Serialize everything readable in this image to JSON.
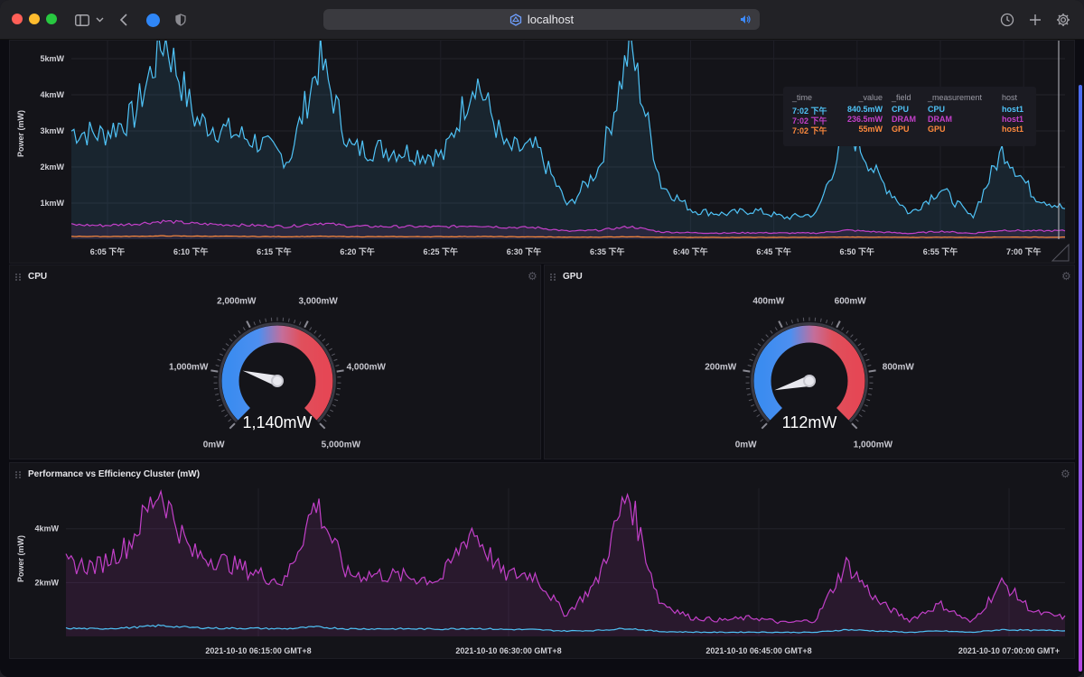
{
  "browser": {
    "url": "localhost",
    "traffic_colors": [
      "#ff5f57",
      "#febc2e",
      "#28c840"
    ]
  },
  "top_chart": {
    "ylabel": "Power (mW)",
    "y_ticks": [
      "5kmW",
      "4kmW",
      "3kmW",
      "2kmW",
      "1kmW"
    ],
    "y_tick_values": [
      5000,
      4000,
      3000,
      2000,
      1000
    ],
    "x_ticks": [
      "6:05 下午",
      "6:10 下午",
      "6:15 下午",
      "6:20 下午",
      "6:25 下午",
      "6:30 下午",
      "6:35 下午",
      "6:40 下午",
      "6:45 下午",
      "6:50 下午",
      "6:55 下午",
      "7:00 下午"
    ],
    "legend": {
      "headers": [
        "_time",
        "_value",
        "_field",
        "_measurement",
        "host"
      ],
      "rows": [
        {
          "time": "7:02 下午",
          "value": "840.5mW",
          "field": "CPU",
          "measurement": "CPU",
          "host": "host1",
          "color": "#4fc3f7"
        },
        {
          "time": "7:02 下午",
          "value": "236.5mW",
          "field": "DRAM",
          "measurement": "DRAM",
          "host": "host1",
          "color": "#c340c9"
        },
        {
          "time": "7:02 下午",
          "value": "55mW",
          "field": "GPU",
          "measurement": "GPU",
          "host": "host1",
          "color": "#ff8a3d"
        }
      ]
    }
  },
  "cpu_gauge": {
    "title": "CPU",
    "value": 1140,
    "max": 5000,
    "value_label": "1,140mW",
    "tick_labels": [
      "0mW",
      "1,000mW",
      "2,000mW",
      "3,000mW",
      "4,000mW",
      "5,000mW"
    ]
  },
  "gpu_gauge": {
    "title": "GPU",
    "value": 112,
    "max": 1000,
    "value_label": "112mW",
    "tick_labels": [
      "0mW",
      "200mW",
      "400mW",
      "600mW",
      "800mW",
      "1,000mW"
    ]
  },
  "bottom_chart": {
    "title": "Performance vs Efficiency Cluster (mW)",
    "ylabel": "Power (mW)",
    "y_ticks": [
      "4kmW",
      "2kmW"
    ],
    "y_tick_values": [
      4000,
      2000
    ],
    "x_ticks": [
      "2021-10-10 06:15:00 GMT+8",
      "2021-10-10 06:30:00 GMT+8",
      "2021-10-10 06:45:00 GMT+8",
      "2021-10-10 07:00:00 GMT+"
    ]
  },
  "chart_data": [
    {
      "type": "area",
      "xlabel": "",
      "ylabel": "Power (mW)",
      "ylim": [
        0,
        5500
      ],
      "x": [
        "18:02",
        "18:05",
        "18:08",
        "18:09",
        "18:10",
        "18:12",
        "18:14",
        "18:16",
        "18:17",
        "18:18",
        "18:20",
        "18:22",
        "18:25",
        "18:27",
        "18:29",
        "18:30",
        "18:32",
        "18:33",
        "18:34",
        "18:35",
        "18:37",
        "18:40",
        "18:43",
        "18:46",
        "18:49",
        "18:50",
        "18:52",
        "18:54",
        "18:55",
        "18:57",
        "18:59",
        "19:00",
        "19:02"
      ],
      "series": [
        {
          "name": "CPU",
          "values": [
            3000,
            2900,
            3400,
            5600,
            3300,
            3000,
            2700,
            2200,
            5000,
            2500,
            2500,
            2400,
            2300,
            4500,
            2500,
            2500,
            900,
            2000,
            5400,
            1500,
            800,
            700,
            800,
            600,
            700,
            3100,
            1700,
            700,
            1400,
            600,
            2500,
            1200,
            840
          ]
        },
        {
          "name": "DRAM",
          "values": [
            400,
            380,
            420,
            500,
            430,
            400,
            380,
            350,
            450,
            360,
            350,
            350,
            340,
            380,
            330,
            320,
            220,
            250,
            350,
            200,
            180,
            170,
            180,
            170,
            170,
            250,
            200,
            160,
            220,
            160,
            250,
            230,
            236
          ]
        },
        {
          "name": "GPU",
          "values": [
            80,
            75,
            80,
            90,
            85,
            80,
            75,
            70,
            80,
            70,
            70,
            70,
            70,
            75,
            68,
            65,
            55,
            58,
            70,
            55,
            50,
            50,
            52,
            50,
            50,
            60,
            55,
            50,
            55,
            50,
            60,
            57,
            55
          ]
        }
      ]
    },
    {
      "type": "area",
      "xlabel": "",
      "ylabel": "Power (mW)",
      "ylim": [
        0,
        5500
      ],
      "x": [
        "06:02",
        "06:05",
        "06:08",
        "06:09",
        "06:10",
        "06:12",
        "06:14",
        "06:16",
        "06:17",
        "06:18",
        "06:20",
        "06:22",
        "06:25",
        "06:27",
        "06:29",
        "06:30",
        "06:32",
        "06:33",
        "06:34",
        "06:35",
        "06:37",
        "06:40",
        "06:43",
        "06:46",
        "06:49",
        "06:50",
        "06:52",
        "06:54",
        "06:55",
        "06:57",
        "06:59",
        "07:00",
        "07:02"
      ],
      "series": [
        {
          "name": "",
          "values": [
            2700,
            2600,
            3400,
            5500,
            3100,
            2800,
            2400,
            2000,
            5000,
            2300,
            2300,
            2200,
            2100,
            4000,
            2300,
            2300,
            800,
            2000,
            5400,
            1300,
            700,
            600,
            700,
            500,
            600,
            2700,
            1300,
            600,
            1200,
            500,
            2000,
            900,
            700
          ]
        },
        {
          "name": "",
          "values": [
            300,
            280,
            320,
            400,
            330,
            300,
            300,
            280,
            350,
            280,
            280,
            280,
            270,
            300,
            260,
            250,
            200,
            220,
            300,
            180,
            160,
            150,
            160,
            150,
            150,
            250,
            200,
            150,
            200,
            150,
            250,
            220,
            220
          ]
        }
      ]
    }
  ]
}
